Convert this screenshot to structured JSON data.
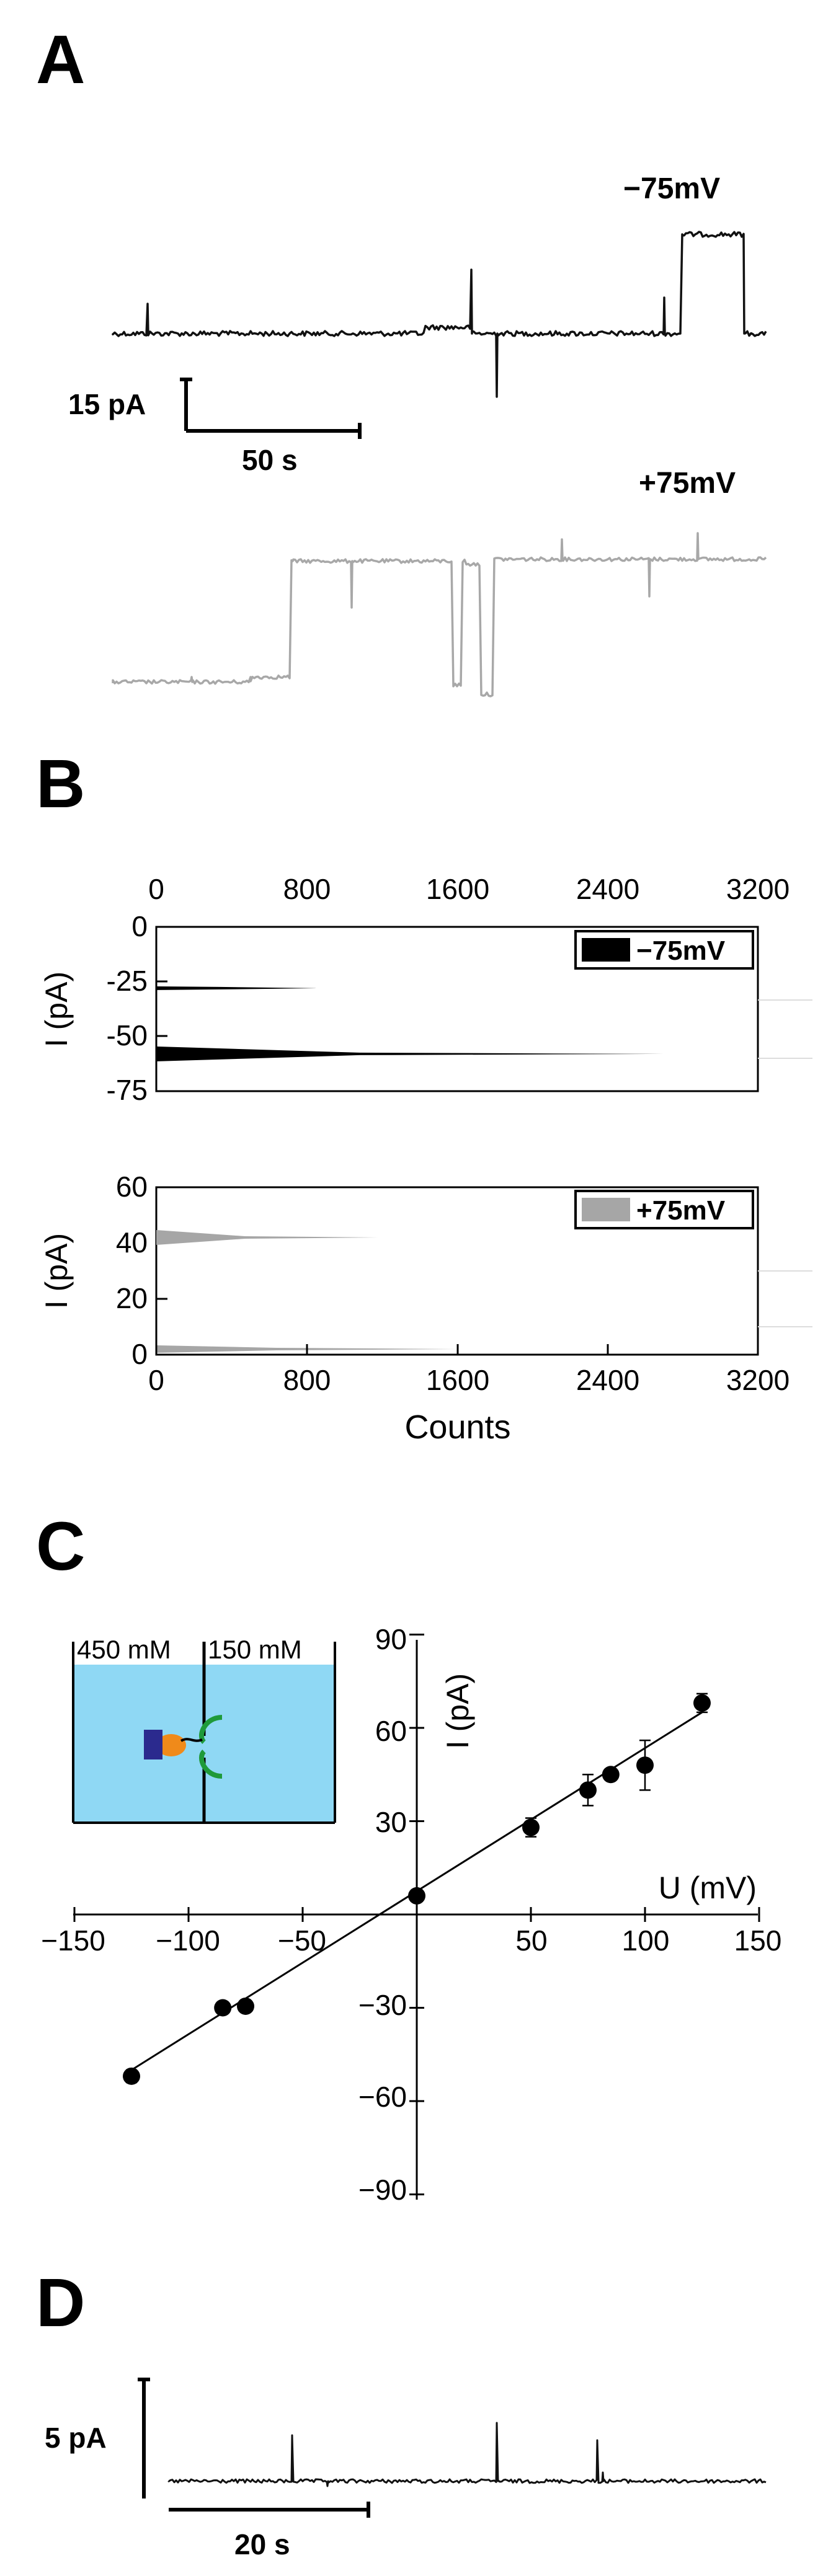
{
  "panels": {
    "a": "A",
    "b": "B",
    "c": "C",
    "d": "D"
  },
  "panel_a": {
    "trace1_label": "−75mV",
    "trace2_label": "+75mV",
    "scalebar_current": "15 pA",
    "scalebar_time": "50 s",
    "trace1_color": "#111111",
    "trace2_color": "#a8a8a8"
  },
  "panel_d": {
    "scalebar_current": "5 pA",
    "scalebar_time": "20 s",
    "trace_color": "#111111"
  },
  "chart_data": [
    {
      "type": "bar",
      "id": "histogram-minus75",
      "orientation": "horizontal",
      "legend": "−75mV",
      "legend_placement": "top-right",
      "color": "#000000",
      "ylabel": "I (pA)",
      "xlim": [
        0,
        3200
      ],
      "ylim": [
        -75,
        0
      ],
      "xticks": [
        "0",
        "800",
        "1600",
        "2400",
        "3200"
      ],
      "yticks": [
        "0",
        "-25",
        "-50",
        "-75"
      ],
      "peaks": [
        {
          "current": -28,
          "counts": 850
        },
        {
          "current": -58,
          "counts": 2700
        }
      ]
    },
    {
      "type": "bar",
      "id": "histogram-plus75",
      "orientation": "horizontal",
      "legend": "+75mV",
      "legend_placement": "top-right",
      "color": "#a6a6a6",
      "ylabel": "I (pA)",
      "xlabel": "Counts",
      "xlim": [
        0,
        3200
      ],
      "ylim": [
        0,
        60
      ],
      "xticks": [
        "0",
        "800",
        "1600",
        "2400",
        "3200"
      ],
      "yticks": [
        "0",
        "20",
        "40",
        "60"
      ],
      "peaks": [
        {
          "current": 42,
          "counts": 1180
        },
        {
          "current": 2,
          "counts": 1600
        }
      ]
    },
    {
      "type": "scatter",
      "id": "iv-curve",
      "xlabel": "U (mV)",
      "ylabel": "I (pA)",
      "xlim": [
        -150,
        150
      ],
      "ylim": [
        -90,
        90
      ],
      "xticks": [
        "−150",
        "−100",
        "−50",
        "50",
        "100",
        "150"
      ],
      "yticks": [
        "90",
        "60",
        "30",
        "−30",
        "−60",
        "−90"
      ],
      "points": [
        {
          "x": -125,
          "y": -52,
          "err": 2
        },
        {
          "x": -85,
          "y": -30,
          "err": 1
        },
        {
          "x": -75,
          "y": -29.5,
          "err": 1
        },
        {
          "x": 0,
          "y": 6,
          "err": 1
        },
        {
          "x": 50,
          "y": 28,
          "err": 3
        },
        {
          "x": 75,
          "y": 40,
          "err": 5
        },
        {
          "x": 85,
          "y": 45,
          "err": 1
        },
        {
          "x": 100,
          "y": 48,
          "err": 8
        },
        {
          "x": 125,
          "y": 68,
          "err": 3
        }
      ],
      "fit": {
        "x": [
          -125,
          125
        ],
        "y": [
          -50,
          65
        ]
      },
      "inset": {
        "left_concentration": "450 mM",
        "right_concentration": "150 mM",
        "solution_color": "#8fd8f4",
        "pore_color": "#1f9a3a",
        "block_color": "#2b2a8e",
        "blob_color": "#f08a1a"
      }
    }
  ]
}
